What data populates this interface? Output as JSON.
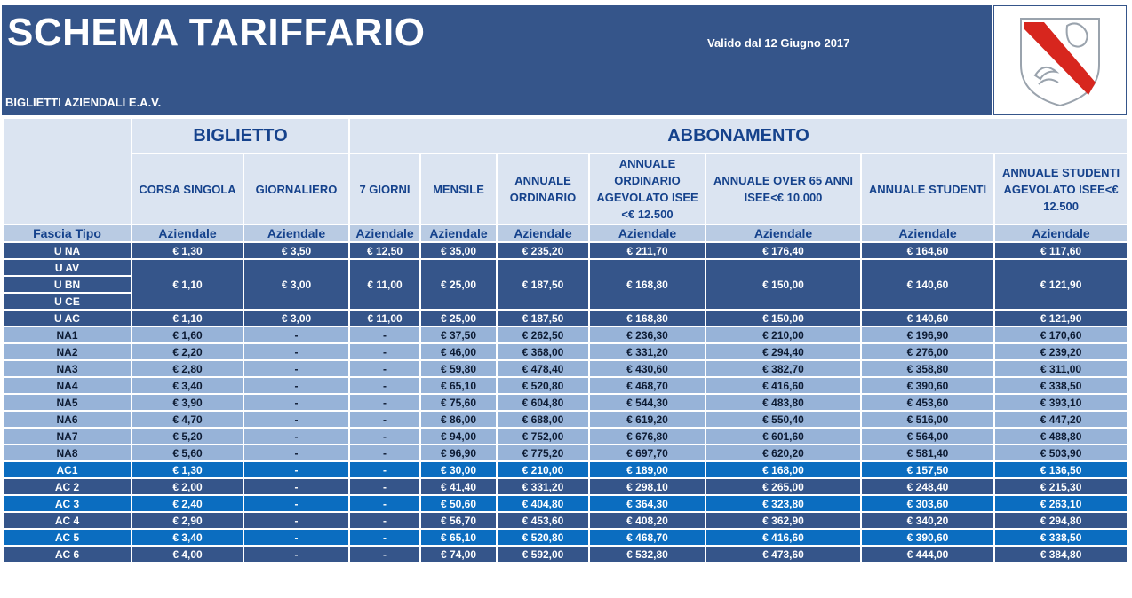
{
  "header": {
    "title": "SCHEMA TARIFFARIO",
    "valid": "Valido dal 12 Giugno 2017",
    "subtitle": "BIGLIETTI AZIENDALI E.A.V."
  },
  "logo": {
    "icon": "campania-region-emblem"
  },
  "colors": {
    "dark": "#35558a",
    "light": "#97b3d8",
    "blue": "#0b6dc0",
    "header_text": "#15428c"
  },
  "groups": {
    "biglietto": "BIGLIETTO",
    "abbonamento": "ABBONAMENTO"
  },
  "columns": [
    "CORSA SINGOLA",
    "GIORNALIERO",
    "7 GIORNI",
    "MENSILE",
    "ANNUALE ORDINARIO",
    "ANNUALE ORDINARIO AGEVOLATO ISEE <€ 12.500",
    "ANNUALE OVER 65 ANNI ISEE<€ 10.000",
    "ANNUALE STUDENTI",
    "ANNUALE STUDENTI AGEVOLATO ISEE<€ 12.500"
  ],
  "fascia_label": "Fascia Tipo",
  "sublabel": "Aziendale",
  "rows": [
    {
      "fascia": "U NA",
      "values": [
        "€ 1,30",
        "€ 3,50",
        "€ 12,50",
        "€ 35,00",
        "€ 235,20",
        "€ 211,70",
        "€ 176,40",
        "€ 164,60",
        "€ 117,60"
      ]
    },
    {
      "fascia": [
        "U AV",
        "U BN",
        "U CE"
      ],
      "values": [
        "€ 1,10",
        "€ 3,00",
        "€ 11,00",
        "€ 25,00",
        "€ 187,50",
        "€ 168,80",
        "€ 150,00",
        "€ 140,60",
        "€ 121,90"
      ]
    },
    {
      "fascia": "U AC",
      "values": [
        "€ 1,10",
        "€ 3,00",
        "€ 11,00",
        "€ 25,00",
        "€ 187,50",
        "€ 168,80",
        "€ 150,00",
        "€ 140,60",
        "€ 121,90"
      ]
    },
    {
      "fascia": "NA1",
      "values": [
        "€ 1,60",
        "-",
        "-",
        "€ 37,50",
        "€ 262,50",
        "€ 236,30",
        "€ 210,00",
        "€ 196,90",
        "€ 170,60"
      ]
    },
    {
      "fascia": "NA2",
      "values": [
        "€ 2,20",
        "-",
        "-",
        "€ 46,00",
        "€ 368,00",
        "€ 331,20",
        "€ 294,40",
        "€ 276,00",
        "€ 239,20"
      ]
    },
    {
      "fascia": "NA3",
      "values": [
        "€ 2,80",
        "-",
        "-",
        "€ 59,80",
        "€ 478,40",
        "€ 430,60",
        "€ 382,70",
        "€ 358,80",
        "€ 311,00"
      ]
    },
    {
      "fascia": "NA4",
      "values": [
        "€ 3,40",
        "-",
        "-",
        "€ 65,10",
        "€ 520,80",
        "€ 468,70",
        "€ 416,60",
        "€ 390,60",
        "€ 338,50"
      ]
    },
    {
      "fascia": "NA5",
      "values": [
        "€ 3,90",
        "-",
        "-",
        "€ 75,60",
        "€ 604,80",
        "€ 544,30",
        "€ 483,80",
        "€ 453,60",
        "€ 393,10"
      ]
    },
    {
      "fascia": "NA6",
      "values": [
        "€ 4,70",
        "-",
        "-",
        "€ 86,00",
        "€ 688,00",
        "€ 619,20",
        "€ 550,40",
        "€ 516,00",
        "€ 447,20"
      ]
    },
    {
      "fascia": "NA7",
      "values": [
        "€ 5,20",
        "-",
        "-",
        "€ 94,00",
        "€ 752,00",
        "€ 676,80",
        "€ 601,60",
        "€ 564,00",
        "€ 488,80"
      ]
    },
    {
      "fascia": "NA8",
      "values": [
        "€ 5,60",
        "-",
        "-",
        "€ 96,90",
        "€ 775,20",
        "€ 697,70",
        "€ 620,20",
        "€ 581,40",
        "€ 503,90"
      ]
    },
    {
      "fascia": "AC1",
      "values": [
        "€ 1,30",
        "-",
        "-",
        "€ 30,00",
        "€ 210,00",
        "€ 189,00",
        "€ 168,00",
        "€ 157,50",
        "€ 136,50"
      ]
    },
    {
      "fascia": "AC 2",
      "values": [
        "€ 2,00",
        "-",
        "-",
        "€ 41,40",
        "€ 331,20",
        "€ 298,10",
        "€ 265,00",
        "€ 248,40",
        "€ 215,30"
      ]
    },
    {
      "fascia": "AC 3",
      "values": [
        "€ 2,40",
        "-",
        "-",
        "€ 50,60",
        "€ 404,80",
        "€ 364,30",
        "€ 323,80",
        "€ 303,60",
        "€ 263,10"
      ]
    },
    {
      "fascia": "AC 4",
      "values": [
        "€ 2,90",
        "-",
        "-",
        "€ 56,70",
        "€ 453,60",
        "€ 408,20",
        "€ 362,90",
        "€ 340,20",
        "€ 294,80"
      ]
    },
    {
      "fascia": "AC 5",
      "values": [
        "€ 3,40",
        "-",
        "-",
        "€ 65,10",
        "€ 520,80",
        "€ 468,70",
        "€ 416,60",
        "€ 390,60",
        "€ 338,50"
      ]
    },
    {
      "fascia": "AC 6",
      "values": [
        "€ 4,00",
        "-",
        "-",
        "€ 74,00",
        "€ 592,00",
        "€ 532,80",
        "€ 473,60",
        "€ 444,00",
        "€ 384,80"
      ]
    }
  ]
}
